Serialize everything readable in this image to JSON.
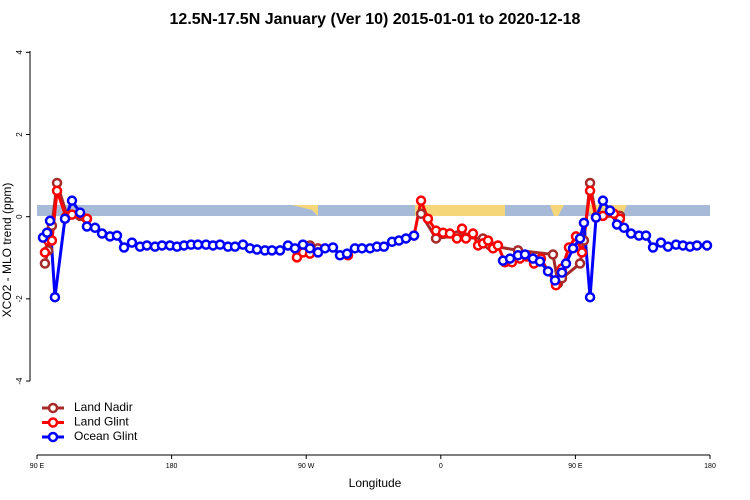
{
  "chart_data": {
    "type": "line",
    "title": "12.5N-17.5N January (Ver 10)   2015-01-01 to 2020-12-18",
    "xlabel": "Longitude",
    "ylabel": "XCO2 - MLO trend (ppm)",
    "xlim": [
      90,
      540
    ],
    "ylim": [
      -5.8,
      4.3
    ],
    "xticks": [
      {
        "value": 90,
        "label": "90 E"
      },
      180,
      {
        "value": 270,
        "label": "90 W"
      },
      {
        "value": 360,
        "label": "0"
      },
      {
        "value": 450,
        "label": "90 E"
      },
      {
        "value": 540,
        "label": "180"
      }
    ],
    "yticks": [
      -4,
      -2,
      0,
      2,
      4
    ],
    "legend": "bottom-left",
    "series": [
      {
        "name": "Land Nadir",
        "color": "#a52a2a",
        "x": [
          95.3,
          97.4,
          100,
          103.4,
          110.1,
          118.8,
          123.4,
          null,
          263.8,
          272.5,
          277.9,
          null,
          297.9,
          null,
          346.8,
          356.8,
          370.8,
          376.8,
          388.2,
          392.9,
          411.6,
          435,
          438.4,
          441,
          453.1,
          455.7,
          459.8,
          463.8,
          479.8
        ],
        "values": [
          -1.14,
          -0.82,
          -0.22,
          0.82,
          0.02,
          0.02,
          -0.05,
          null,
          -0.82,
          -0.7,
          -0.77,
          null,
          -0.94,
          null,
          0.07,
          -0.53,
          -0.46,
          -0.51,
          -0.53,
          -0.7,
          -0.82,
          -0.92,
          -1.62,
          -1.5,
          -1.14,
          -0.58,
          0.82,
          0,
          0.02
        ]
      },
      {
        "name": "Land Glint",
        "color": "#ff0000",
        "x": [
          95.3,
          97.4,
          100,
          103.4,
          109.4,
          113.4,
          118.8,
          123.4,
          null,
          263.8,
          267.9,
          272.5,
          277.9,
          null,
          297.9,
          null,
          342.1,
          346.8,
          351.4,
          356.8,
          361.5,
          366.1,
          370.8,
          374.2,
          376.8,
          381.5,
          384.9,
          388.2,
          391.6,
          394.9,
          398.2,
          402.9,
          407.6,
          412.9,
          417.6,
          422.3,
          427,
          437,
          441,
          445.7,
          450.4,
          454.4,
          459.8,
          463.8,
          468.4,
          475.8,
          479.8
        ],
        "values": [
          -0.87,
          -0.58,
          -0.58,
          0.63,
          0,
          0.05,
          0.07,
          -0.05,
          null,
          -0.99,
          -0.87,
          -0.9,
          -0.87,
          null,
          -0.94,
          null,
          -0.46,
          0.39,
          -0.05,
          -0.34,
          -0.39,
          -0.41,
          -0.53,
          -0.29,
          -0.53,
          -0.41,
          -0.7,
          -0.65,
          -0.58,
          -0.77,
          -0.7,
          -1.11,
          -1.11,
          -1.02,
          -0.97,
          -1.14,
          -1.02,
          -1.67,
          -1.26,
          -0.75,
          -0.48,
          -0.87,
          0.63,
          -0.02,
          0.02,
          0.07,
          -0.05
        ]
      },
      {
        "name": "Ocean Glint",
        "color": "#0000ff",
        "x": [
          94,
          96.7,
          98.7,
          102,
          108.7,
          113.4,
          118.8,
          123.4,
          128.8,
          133.5,
          138.8,
          143.5,
          148.2,
          153.5,
          158.9,
          163.5,
          168.9,
          173.6,
          178.9,
          183.6,
          188.3,
          193,
          197.6,
          203,
          207.7,
          212.4,
          217.7,
          222.4,
          227.7,
          232.4,
          237.1,
          242.4,
          247.1,
          252.5,
          257.8,
          262.5,
          267.8,
          272.5,
          277.9,
          282.6,
          287.9,
          292.6,
          297.3,
          302.6,
          307.3,
          312.7,
          317.3,
          322,
          327.4,
          332,
          336.7,
          342.1,
          null,
          401.6,
          406.3,
          411.6,
          416.3,
          421.6,
          426.3,
          431.7,
          436.4,
          441,
          443.7,
          448.4,
          453.1,
          455.7,
          459.8,
          463.8,
          468.4,
          473.1,
          477.8,
          482.5,
          487.2,
          492.5,
          497.2,
          501.9,
          507.2,
          511.9,
          517.3,
          521.9,
          526.6,
          531.3,
          538
        ],
        "values": [
          -0.51,
          -0.39,
          -0.1,
          -1.96,
          -0.05,
          0.39,
          0.1,
          -0.24,
          -0.27,
          -0.41,
          -0.48,
          -0.46,
          -0.75,
          -0.63,
          -0.73,
          -0.7,
          -0.73,
          -0.7,
          -0.7,
          -0.73,
          -0.7,
          -0.68,
          -0.68,
          -0.68,
          -0.7,
          -0.68,
          -0.73,
          -0.73,
          -0.68,
          -0.77,
          -0.8,
          -0.82,
          -0.82,
          -0.82,
          -0.7,
          -0.77,
          -0.68,
          -0.77,
          -0.87,
          -0.77,
          -0.75,
          -0.94,
          -0.9,
          -0.77,
          -0.77,
          -0.77,
          -0.73,
          -0.73,
          -0.61,
          -0.58,
          -0.53,
          -0.46,
          null,
          -1.07,
          -1.02,
          -0.94,
          -0.92,
          -1.02,
          -1.09,
          -1.33,
          -1.55,
          -1.36,
          -1.14,
          -0.77,
          -0.53,
          -0.15,
          -1.96,
          -0.02,
          0.39,
          0.15,
          -0.19,
          -0.27,
          -0.41,
          -0.46,
          -0.46,
          -0.75,
          -0.63,
          -0.73,
          -0.68,
          -0.7,
          -0.73,
          -0.7,
          -0.7
        ]
      }
    ]
  }
}
